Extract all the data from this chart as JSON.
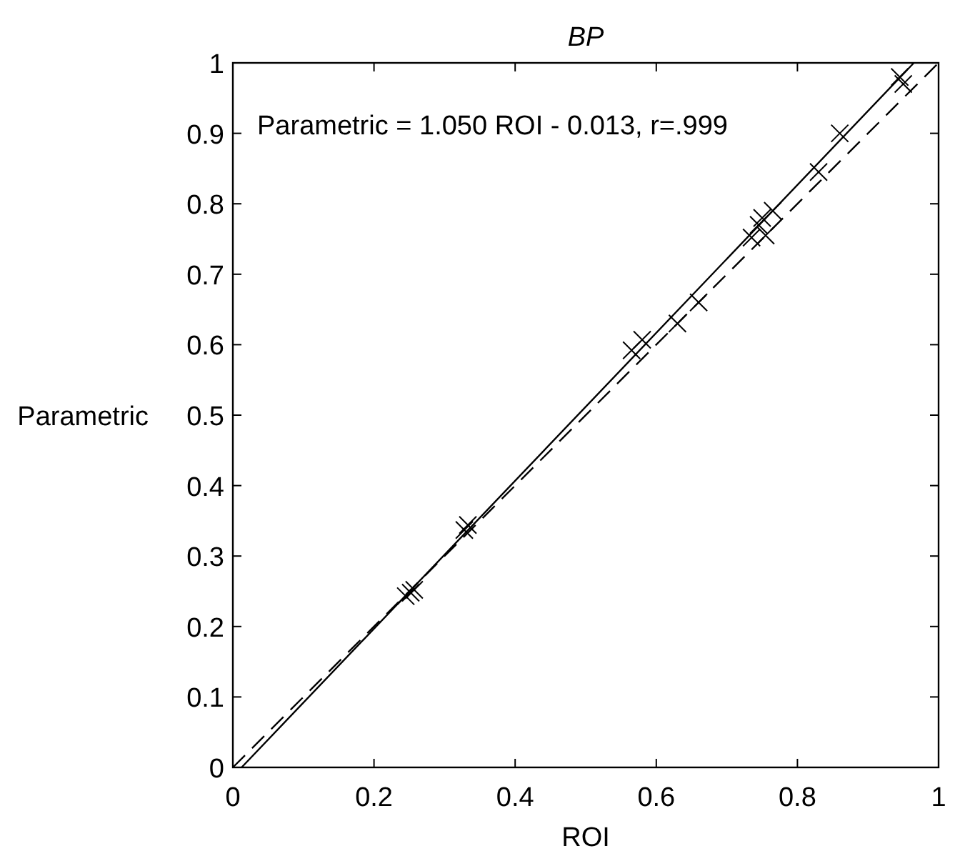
{
  "chart_data": {
    "type": "scatter",
    "title": "BP",
    "xlabel": "ROI",
    "ylabel": "Parametric",
    "xlim": [
      0,
      1
    ],
    "ylim": [
      0,
      1
    ],
    "xticks": [
      0,
      0.2,
      0.4,
      0.6,
      0.8,
      1
    ],
    "yticks": [
      0,
      0.1,
      0.2,
      0.3,
      0.4,
      0.5,
      0.6,
      0.7,
      0.8,
      0.9,
      1
    ],
    "grid": false,
    "annotations": [
      "Parametric = 1.050 ROI - 0.013, r=.999"
    ],
    "series": [
      {
        "color": "#000000",
        "marker": "cross",
        "x": [
          0.245,
          0.252,
          0.257,
          0.328,
          0.333,
          0.565,
          0.58,
          0.63,
          0.66,
          0.735,
          0.745,
          0.75,
          0.755,
          0.765,
          0.83,
          0.86,
          0.945,
          0.95
        ],
        "values": [
          0.243,
          0.248,
          0.252,
          0.337,
          0.344,
          0.592,
          0.607,
          0.63,
          0.66,
          0.752,
          0.77,
          0.78,
          0.755,
          0.79,
          0.845,
          0.9,
          0.98,
          0.97
        ]
      },
      {
        "type": "line",
        "color": "#000000",
        "line_style": "solid",
        "x": [
          0.0124,
          0.965
        ],
        "values": [
          0,
          1
        ]
      },
      {
        "type": "line",
        "color": "#000000",
        "line_style": "dashed",
        "x": [
          0,
          1
        ],
        "values": [
          0,
          1
        ]
      }
    ]
  }
}
